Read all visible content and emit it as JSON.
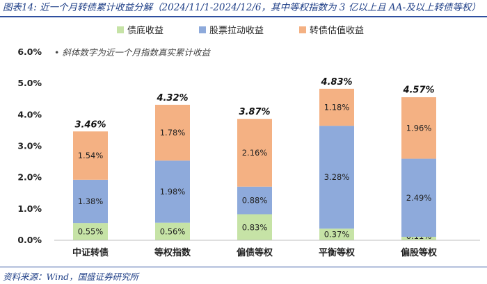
{
  "figure": {
    "title": "图表14: 近一个月转债累计收益分解（2024/11/1-2024/12/6，其中等权指数为 3 亿以上且 AA-及以上转债等权）",
    "source": "资料来源：Wind，国盛证券研究所",
    "note": "• 斜体数字为近一个月指数真实累计收益"
  },
  "chart_data": {
    "type": "bar",
    "stacked": true,
    "categories": [
      "中证转债",
      "等权指数",
      "偏债等权",
      "平衡等权",
      "偏股等权"
    ],
    "series": [
      {
        "name": "债底收益",
        "color": "#c6e3a6",
        "values": [
          0.55,
          0.56,
          0.83,
          0.37,
          0.11
        ]
      },
      {
        "name": "股票拉动收益",
        "color": "#8eaadb",
        "values": [
          1.38,
          1.98,
          0.88,
          3.28,
          2.49
        ]
      },
      {
        "name": "转债估值收益",
        "color": "#f4b183",
        "values": [
          1.54,
          1.78,
          2.16,
          1.18,
          1.96
        ]
      }
    ],
    "totals": [
      3.46,
      4.32,
      3.87,
      4.83,
      4.57
    ],
    "ylim": [
      0,
      6
    ],
    "yticks": [
      0,
      1,
      2,
      3,
      4,
      5,
      6
    ],
    "ytick_labels": [
      "0.0%",
      "1.0%",
      "2.0%",
      "3.0%",
      "4.0%",
      "5.0%",
      "6.0%"
    ],
    "unit": "%",
    "legend_position": "top",
    "grid": false
  }
}
